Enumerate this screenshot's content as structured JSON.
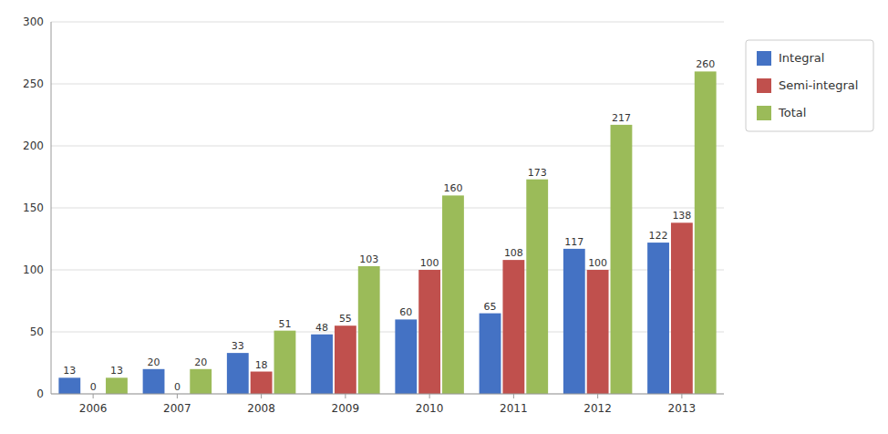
{
  "chart_data": {
    "type": "bar",
    "categories": [
      "2006",
      "2007",
      "2008",
      "2009",
      "2010",
      "2011",
      "2012",
      "2013"
    ],
    "series": [
      {
        "name": "Integral",
        "color": "#4472C4",
        "values": [
          13,
          20,
          33,
          48,
          60,
          65,
          117,
          122
        ]
      },
      {
        "name": "Semi-integral",
        "color": "#C0504D",
        "values": [
          0,
          0,
          18,
          55,
          100,
          108,
          100,
          138
        ]
      },
      {
        "name": "Total",
        "color": "#9BBB59",
        "values": [
          13,
          20,
          51,
          103,
          160,
          173,
          217,
          260
        ]
      }
    ],
    "ylim": [
      0,
      300
    ],
    "yticks": [
      0,
      50,
      100,
      150,
      200,
      250,
      300
    ],
    "grid": true,
    "legend": "right",
    "data_labels": true
  }
}
